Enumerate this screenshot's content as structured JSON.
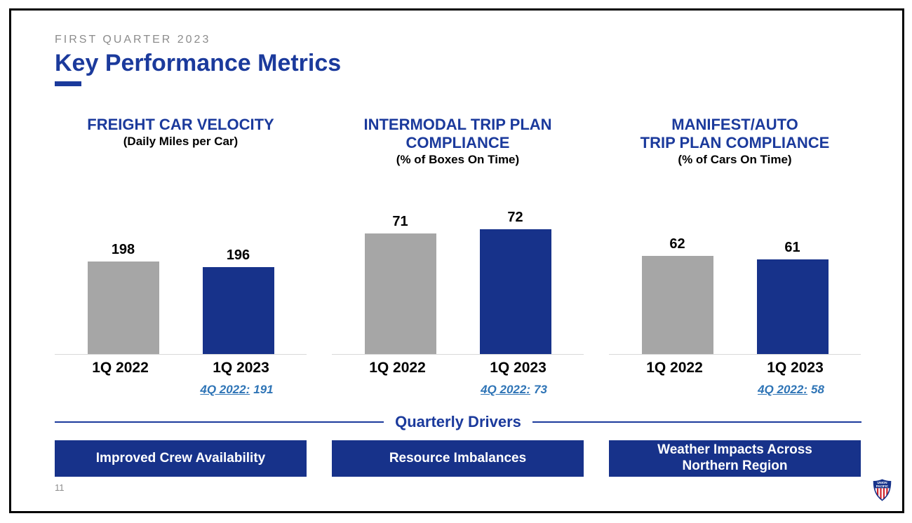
{
  "slide": {
    "eyebrow": "FIRST QUARTER 2023",
    "title": "Key Performance Metrics",
    "page_number": "11"
  },
  "colors": {
    "brand_blue": "#17328A",
    "heading_blue": "#1B3A9C",
    "bar_gray": "#A6A6A6",
    "footnote_blue": "#2E74B6",
    "eyebrow_gray": "#8C8C8C",
    "axis_gray": "#D9D9D9",
    "logo_red": "#D0232A"
  },
  "chart_data": [
    {
      "type": "bar",
      "title": "FREIGHT CAR VELOCITY",
      "subtitle": "(Daily Miles per Car)",
      "categories": [
        "1Q 2022",
        "1Q 2023"
      ],
      "values": [
        198,
        196
      ],
      "data_labels": [
        "198",
        "196"
      ],
      "bar_colors": [
        "#A6A6A6",
        "#17328A"
      ],
      "footnote_label": "4Q 2022:",
      "footnote_value": "191",
      "ylim": [
        165,
        220
      ],
      "grid": false,
      "legend": "none"
    },
    {
      "type": "bar",
      "title": "INTERMODAL TRIP PLAN\nCOMPLIANCE",
      "subtitle": "(% of Boxes On Time)",
      "categories": [
        "1Q 2022",
        "1Q 2023"
      ],
      "values": [
        71,
        72
      ],
      "data_labels": [
        "71",
        "72"
      ],
      "bar_colors": [
        "#A6A6A6",
        "#17328A"
      ],
      "footnote_label": "4Q 2022:",
      "footnote_value": "73",
      "ylim": [
        42,
        79
      ],
      "grid": false,
      "legend": "none"
    },
    {
      "type": "bar",
      "title": "MANIFEST/AUTO\nTRIP PLAN COMPLIANCE",
      "subtitle": "(% of Cars On Time)",
      "categories": [
        "1Q 2022",
        "1Q 2023"
      ],
      "values": [
        62,
        61
      ],
      "data_labels": [
        "62",
        "61"
      ],
      "bar_colors": [
        "#A6A6A6",
        "#17328A"
      ],
      "footnote_label": "4Q 2022:",
      "footnote_value": "58",
      "ylim": [
        34,
        78
      ],
      "grid": false,
      "legend": "none"
    }
  ],
  "drivers": {
    "heading": "Quarterly Drivers",
    "items": [
      "Improved Crew Availability",
      "Resource Imbalances",
      "Weather Impacts Across\nNorthern Region"
    ]
  },
  "logo": {
    "name": "union-pacific-shield",
    "line1": "UNION",
    "line2": "PACIFIC"
  }
}
